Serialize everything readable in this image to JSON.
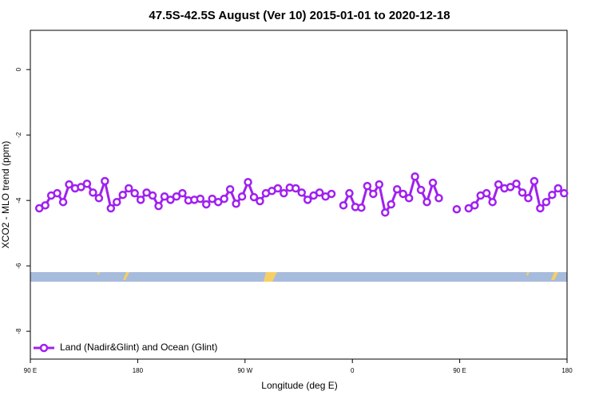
{
  "chart_data": {
    "type": "line",
    "title": "47.5S-42.5S August (Ver 10)   2015-01-01 to 2020-12-18",
    "x_label": "Longitude (deg E)",
    "y_label": "XCO2 - MLO trend (ppm)",
    "xlim": [
      90,
      540
    ],
    "ylim": [
      -8.85,
      1.2
    ],
    "xticks": [
      {
        "value": 90,
        "label": "90 E"
      },
      {
        "value": 180,
        "label": "180"
      },
      {
        "value": 270,
        "label": "90 W"
      },
      {
        "value": 360,
        "label": "0"
      },
      {
        "value": 450,
        "label": "90 E"
      },
      {
        "value": 540,
        "label": "180"
      }
    ],
    "yticks": [
      0,
      -2,
      -4,
      -6,
      -8
    ],
    "x": [
      97.5,
      102.5,
      107.5,
      112.5,
      117.5,
      122.5,
      127.5,
      132.5,
      137.5,
      142.5,
      147.5,
      152.5,
      157.5,
      162.5,
      167.5,
      172.5,
      177.5,
      182.5,
      187.5,
      192.5,
      197.5,
      202.5,
      207.5,
      212.5,
      217.5,
      222.5,
      227.5,
      232.5,
      237.5,
      242.5,
      247.5,
      252.5,
      257.5,
      262.5,
      267.5,
      272.5,
      277.5,
      282.5,
      287.5,
      292.5,
      297.5,
      302.5,
      307.5,
      312.5,
      317.5,
      322.5,
      327.5,
      332.5,
      337.5,
      342.5,
      347.5,
      352.5,
      357.5,
      362.5,
      367.5,
      372.5,
      377.5,
      382.5,
      387.5,
      392.5,
      397.5,
      402.5,
      407.5,
      412.5,
      417.5,
      422.5,
      427.5,
      432.5,
      437.5,
      442.5,
      447.5,
      452.5,
      457.5,
      462.5,
      467.5,
      472.5,
      477.5,
      482.5,
      487.5,
      492.5,
      497.5,
      502.5,
      507.5,
      512.5,
      517.5,
      522.5,
      527.5,
      532.5,
      537.5
    ],
    "series": [
      {
        "name": "Land (Nadir&Glint) and Ocean (Glint)",
        "color": "#a020f0",
        "values": [
          -4.24,
          -4.15,
          -3.85,
          -3.78,
          -4.05,
          -3.51,
          -3.63,
          -3.59,
          -3.49,
          -3.76,
          -3.93,
          -3.41,
          -4.24,
          -4.05,
          -3.83,
          -3.63,
          -3.78,
          -3.98,
          -3.76,
          -3.85,
          -4.17,
          -3.88,
          -3.98,
          -3.88,
          -3.78,
          -4.0,
          -3.98,
          -3.95,
          -4.12,
          -3.95,
          -4.05,
          -3.95,
          -3.66,
          -4.1,
          -3.88,
          -3.44,
          -3.9,
          -4.02,
          -3.78,
          -3.71,
          -3.63,
          -3.78,
          -3.61,
          -3.63,
          -3.76,
          -3.98,
          -3.85,
          -3.76,
          -3.88,
          -3.8,
          null,
          -4.15,
          -3.78,
          -4.2,
          -4.22,
          -3.56,
          -3.8,
          -3.51,
          -4.37,
          -4.12,
          -3.66,
          -3.8,
          -3.93,
          -3.27,
          -3.68,
          -4.05,
          -3.46,
          -3.93,
          null,
          null,
          -4.27,
          null,
          -4.24,
          -4.15,
          -3.85,
          -3.78,
          -4.05,
          -3.51,
          -3.63,
          -3.59,
          -3.49,
          -3.76,
          -3.93,
          -3.41,
          -4.24,
          -4.05,
          -3.83,
          -3.63,
          -3.78
        ]
      }
    ],
    "legend": "bottom-left"
  }
}
